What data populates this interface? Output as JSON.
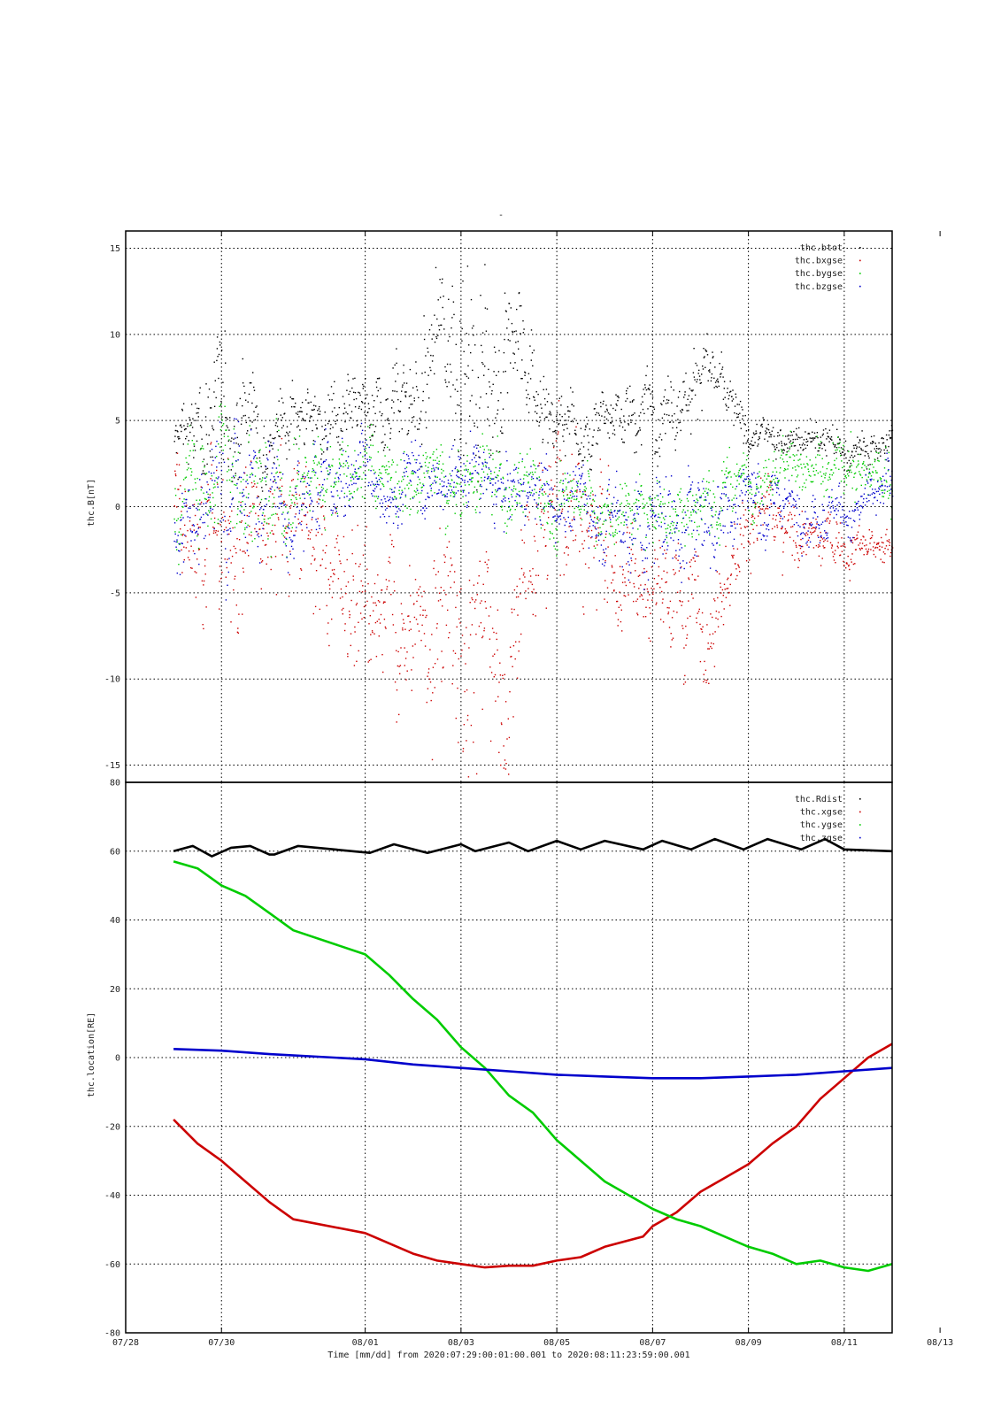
{
  "title": "-",
  "xlabel": "Time [mm/dd]  from 2020:07:29:00:01:00.001  to  2020:08:11:23:59:00.001",
  "x_ticks": [
    "07/28",
    "07/30",
    "08/01",
    "08/03",
    "08/05",
    "08/07",
    "08/09",
    "08/11",
    "08/13"
  ],
  "chart_data": [
    {
      "type": "scatter",
      "ylabel": "thc.B[nT]",
      "xlim_days_label": [
        "07/28",
        "08/13"
      ],
      "ylim": [
        -16,
        16
      ],
      "y_ticks": [
        15,
        10,
        5,
        0,
        -5,
        -10,
        -15
      ],
      "grid": true,
      "legend_position": "top-right",
      "series": [
        {
          "name": "thc.btot",
          "color": "#000000",
          "envelope": {
            "x": [
              "07/29",
              "07/30",
              "07/31",
              "08/01",
              "08/02",
              "08/03",
              "08/04",
              "08/05",
              "08/06",
              "08/07",
              "08/08",
              "08/09",
              "08/10",
              "08/11",
              "08/12"
            ],
            "center": [
              3.5,
              6,
              5,
              4.5,
              7,
              10,
              9,
              4,
              5,
              6,
              8,
              4,
              4,
              3,
              4
            ],
            "spread": [
              1.5,
              4,
              2,
              2,
              3,
              6,
              4,
              2,
              1.5,
              2,
              2,
              1,
              1,
              1,
              1
            ]
          }
        },
        {
          "name": "thc.bxgse",
          "color": "#cc0000",
          "envelope": {
            "x": [
              "07/29",
              "07/30",
              "07/31",
              "08/01",
              "08/02",
              "08/03",
              "08/04",
              "08/05",
              "08/06",
              "08/07",
              "08/08",
              "08/09",
              "08/10",
              "08/11",
              "08/12"
            ],
            "center": [
              1,
              -3,
              0,
              -5,
              -7,
              -9,
              -8,
              1,
              -2,
              -5,
              -6,
              -1,
              -2,
              -2,
              -3
            ],
            "spread": [
              3,
              5,
              4,
              4,
              4,
              7,
              6,
              5,
              4,
              3,
              3,
              2,
              1.5,
              1.5,
              1
            ]
          }
        },
        {
          "name": "thc.bygse",
          "color": "#00cc00",
          "envelope": {
            "x": [
              "07/29",
              "07/30",
              "07/31",
              "08/01",
              "08/02",
              "08/03",
              "08/04",
              "08/05",
              "08/06",
              "08/07",
              "08/08",
              "08/09",
              "08/10",
              "08/11",
              "08/12"
            ],
            "center": [
              0,
              2,
              1,
              2,
              1.5,
              1.5,
              1,
              0.5,
              0,
              0,
              0,
              2,
              2.5,
              2,
              1.5
            ],
            "spread": [
              2,
              4,
              3,
              2,
              2,
              2,
              2,
              2,
              2,
              2,
              2,
              1.5,
              1.5,
              1.5,
              1.5
            ]
          }
        },
        {
          "name": "thc.bzgse",
          "color": "#0000cc",
          "envelope": {
            "x": [
              "07/29",
              "07/30",
              "07/31",
              "08/01",
              "08/02",
              "08/03",
              "08/04",
              "08/05",
              "08/06",
              "08/07",
              "08/08",
              "08/09",
              "08/10",
              "08/11",
              "08/12"
            ],
            "center": [
              -1,
              0,
              1,
              2,
              1,
              1,
              0.5,
              1,
              -1,
              -1,
              0,
              1,
              0,
              0,
              1
            ],
            "spread": [
              2,
              4,
              3,
              2,
              2,
              2,
              2,
              2,
              2,
              3,
              3,
              2,
              1.5,
              1.5,
              1.5
            ]
          }
        }
      ]
    },
    {
      "type": "line",
      "ylabel": "thc.location[RE]",
      "ylim": [
        -80,
        80
      ],
      "y_ticks": [
        80,
        60,
        40,
        20,
        0,
        -20,
        -40,
        -60,
        -80
      ],
      "grid": true,
      "legend_position": "top-right",
      "series": [
        {
          "name": "thc.Rdist",
          "color": "#000000",
          "x": [
            "07/29",
            "07/29.4",
            "07/29.8",
            "07/30.2",
            "07/30.6",
            "07/31",
            "07/31.1",
            "07/31.6",
            "08/01.1",
            "08/01.6",
            "08/02.3",
            "08/03",
            "08/03.3",
            "08/04",
            "08/04.4",
            "08/05",
            "08/05.5",
            "08/06",
            "08/06.8",
            "08/07.2",
            "08/07.8",
            "08/08.3",
            "08/08.9",
            "08/09.4",
            "08/10.1",
            "08/10.6",
            "08/11",
            "08/12"
          ],
          "values": [
            60,
            61.5,
            58.5,
            61,
            61.5,
            59,
            59,
            61.5,
            59.5,
            62,
            59.5,
            62,
            60,
            62.5,
            60,
            63,
            60.5,
            63,
            60.5,
            63,
            60.5,
            63.5,
            60.5,
            63.5,
            60.5,
            63.5,
            60.5,
            60
          ]
        },
        {
          "name": "thc.xgse",
          "color": "#cc0000",
          "x": [
            "07/29",
            "07/29.5",
            "07/30",
            "07/30.5",
            "07/31",
            "07/31.5",
            "08/01",
            "08/01.5",
            "08/02",
            "08/02.5",
            "08/03",
            "08/03.5",
            "08/04",
            "08/04.5",
            "08/05",
            "08/05.5",
            "08/06",
            "08/06.8",
            "08/07",
            "08/07.5",
            "08/08",
            "08/08.5",
            "08/09",
            "08/09.5",
            "08/10",
            "08/10.5",
            "08/11",
            "08/11.5",
            "08/12"
          ],
          "values": [
            -18,
            -25,
            -30,
            -36,
            -42,
            -47,
            -51,
            -54,
            -57,
            -59,
            -60,
            -61,
            -60.5,
            -60.5,
            -59,
            -58,
            -55,
            -52,
            -49,
            -45,
            -39,
            -35,
            -31,
            -25,
            -20,
            -12,
            -6,
            0,
            4
          ]
        },
        {
          "name": "thc.ygse",
          "color": "#00cc00",
          "x": [
            "07/29",
            "07/29.5",
            "07/30",
            "07/30.5",
            "07/31",
            "07/31.5",
            "08/01",
            "08/01.5",
            "08/02",
            "08/02.5",
            "08/03",
            "08/03.5",
            "08/04",
            "08/04.5",
            "08/05",
            "08/05.5",
            "08/06",
            "08/06.5",
            "08/07",
            "08/07.5",
            "08/08",
            "08/08.5",
            "08/09",
            "08/09.5",
            "08/10",
            "08/10.5",
            "08/11",
            "08/11.5",
            "08/12"
          ],
          "values": [
            57,
            55,
            50,
            47,
            42,
            37,
            30,
            24,
            17,
            11,
            3,
            -3,
            -11,
            -16,
            -24,
            -30,
            -36,
            -40,
            -44,
            -47,
            -49,
            -52,
            -55,
            -57,
            -60,
            -59,
            -61,
            -62,
            -60
          ]
        },
        {
          "name": "thc.zgse",
          "color": "#0000cc",
          "x": [
            "07/29",
            "07/30",
            "07/31",
            "08/01",
            "08/02",
            "08/03",
            "08/04",
            "08/05",
            "08/06",
            "08/07",
            "08/08",
            "08/09",
            "08/10",
            "08/11",
            "08/12"
          ],
          "values": [
            2.5,
            2,
            1,
            -0.5,
            -2,
            -3,
            -4,
            -5,
            -5.5,
            -6,
            -6,
            -5.5,
            -5,
            -4,
            -3
          ]
        }
      ]
    }
  ]
}
